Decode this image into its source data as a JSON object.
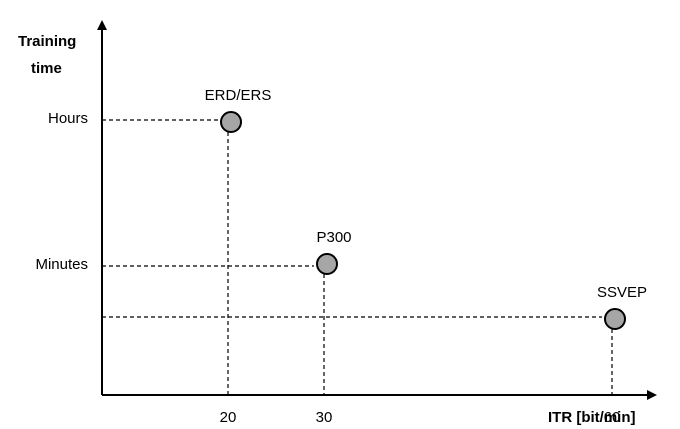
{
  "chart_data": {
    "type": "scatter",
    "ylabel_lines": [
      "Training",
      "time"
    ],
    "xlabel": "ITR [bit/min]",
    "x_ticks": [
      20,
      30,
      60
    ],
    "y_ticks": [
      {
        "label": "Hours",
        "level": "hours"
      },
      {
        "label": "Minutes",
        "level": "minutes"
      }
    ],
    "points": [
      {
        "label": "ERD/ERS",
        "x": 20,
        "training_time": "Hours"
      },
      {
        "label": "P300",
        "x": 30,
        "training_time": "Minutes"
      },
      {
        "label": "SSVEP",
        "x": 60,
        "training_time": "Minutes"
      }
    ],
    "point_color": "#a6a6a6"
  }
}
